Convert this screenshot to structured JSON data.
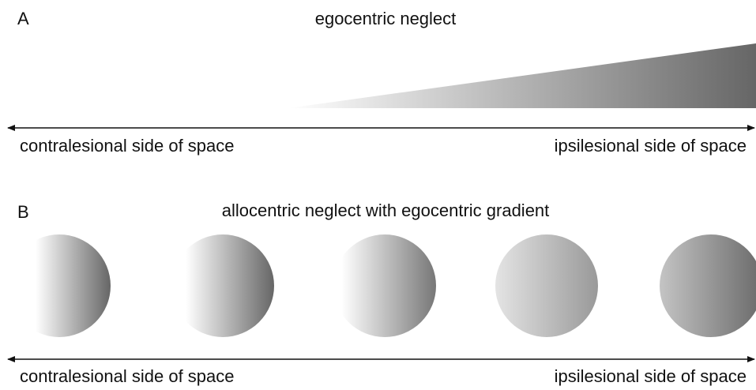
{
  "panels": [
    {
      "label": "A",
      "title": "egocentric neglect",
      "left_label": "contralesional side of space",
      "right_label": "ipsilesional side of space"
    },
    {
      "label": "B",
      "title": "allocentric neglect with egocentric gradient",
      "left_label": "contralesional side of space",
      "right_label": "ipsilesional side of space"
    }
  ]
}
